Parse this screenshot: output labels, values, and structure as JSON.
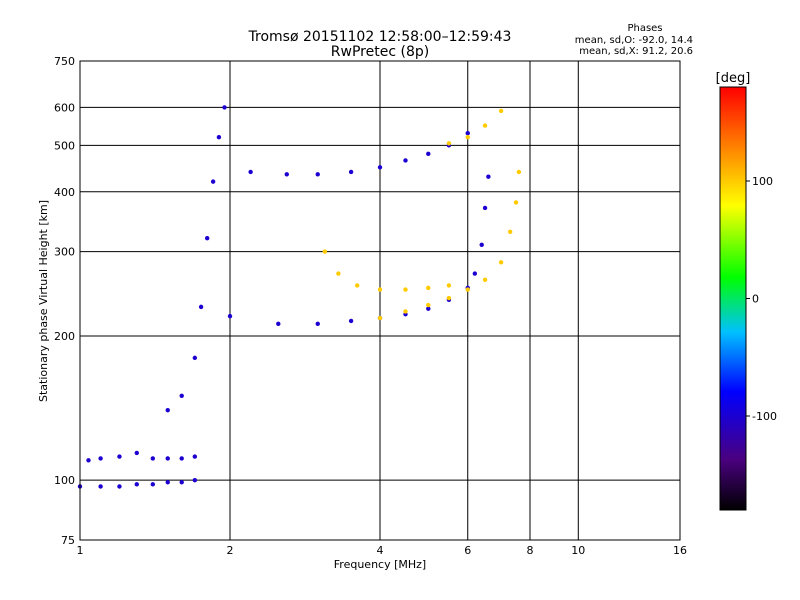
{
  "chart_data": {
    "type": "scatter",
    "title": "Tromsø 20151102 12:58:00–12:59:43",
    "subtitle": "RwPretec (8p)",
    "xlabel": "Frequency [MHz]",
    "ylabel": "Stationary phase Virtual Height [km]",
    "x_scale": "log",
    "y_scale": "log",
    "xlim": [
      1,
      16
    ],
    "ylim": [
      75,
      750
    ],
    "x_ticks": [
      1,
      2,
      4,
      6,
      8,
      10,
      16
    ],
    "y_ticks": [
      75,
      100,
      200,
      300,
      400,
      500,
      600,
      750
    ],
    "grid": true,
    "phases": {
      "title": "Phases",
      "line_o": "mean, sd,O: -92.0, 14.4",
      "line_x": "mean, sd,X:  91.2, 20.6"
    },
    "colorbar": {
      "label": "[deg]",
      "range": [
        -180,
        180
      ],
      "ticks": [
        -100,
        0,
        100
      ]
    },
    "traces": [
      {
        "mode": "O",
        "phase_deg": -100,
        "points": [
          [
            1.0,
            97
          ],
          [
            1.1,
            97
          ],
          [
            1.2,
            97
          ],
          [
            1.3,
            98
          ],
          [
            1.4,
            98
          ],
          [
            1.5,
            99
          ],
          [
            1.6,
            99
          ],
          [
            1.7,
            100
          ]
        ]
      },
      {
        "mode": "O",
        "phase_deg": -100,
        "points": [
          [
            1.04,
            110
          ],
          [
            1.1,
            111
          ],
          [
            1.2,
            112
          ],
          [
            1.3,
            114
          ],
          [
            1.4,
            111
          ],
          [
            1.5,
            111
          ],
          [
            1.6,
            111
          ],
          [
            1.7,
            112
          ]
        ]
      },
      {
        "mode": "O",
        "phase_deg": -100,
        "points": [
          [
            1.5,
            140
          ],
          [
            1.6,
            150
          ],
          [
            1.7,
            180
          ],
          [
            1.75,
            230
          ],
          [
            1.8,
            320
          ],
          [
            1.85,
            420
          ],
          [
            1.9,
            520
          ],
          [
            1.95,
            600
          ]
        ]
      },
      {
        "mode": "O",
        "phase_deg": -100,
        "points": [
          [
            2.0,
            220
          ],
          [
            2.5,
            212
          ],
          [
            3.0,
            212
          ],
          [
            3.5,
            215
          ],
          [
            4.0,
            218
          ],
          [
            4.5,
            222
          ],
          [
            5.0,
            228
          ],
          [
            5.5,
            238
          ],
          [
            6.0,
            252
          ],
          [
            6.2,
            270
          ],
          [
            6.4,
            310
          ],
          [
            6.5,
            370
          ],
          [
            6.6,
            430
          ]
        ]
      },
      {
        "mode": "O",
        "phase_deg": -100,
        "points": [
          [
            2.2,
            440
          ],
          [
            2.6,
            435
          ],
          [
            3.0,
            435
          ],
          [
            3.5,
            440
          ],
          [
            4.0,
            450
          ],
          [
            4.5,
            465
          ],
          [
            5.0,
            480
          ],
          [
            5.5,
            500
          ],
          [
            6.0,
            530
          ]
        ]
      },
      {
        "mode": "X",
        "phase_deg": 100,
        "points": [
          [
            3.1,
            300
          ],
          [
            3.3,
            270
          ],
          [
            3.6,
            255
          ],
          [
            4.0,
            250
          ],
          [
            4.5,
            250
          ],
          [
            5.0,
            252
          ],
          [
            5.5,
            255
          ]
        ]
      },
      {
        "mode": "X",
        "phase_deg": 100,
        "points": [
          [
            4.0,
            218
          ],
          [
            4.5,
            225
          ],
          [
            5.0,
            232
          ],
          [
            5.5,
            240
          ],
          [
            6.0,
            250
          ],
          [
            6.5,
            262
          ],
          [
            7.0,
            285
          ],
          [
            7.3,
            330
          ],
          [
            7.5,
            380
          ],
          [
            7.6,
            440
          ]
        ]
      },
      {
        "mode": "X",
        "phase_deg": 100,
        "points": [
          [
            5.5,
            505
          ],
          [
            6.0,
            520
          ],
          [
            6.5,
            550
          ],
          [
            7.0,
            590
          ]
        ]
      }
    ]
  }
}
